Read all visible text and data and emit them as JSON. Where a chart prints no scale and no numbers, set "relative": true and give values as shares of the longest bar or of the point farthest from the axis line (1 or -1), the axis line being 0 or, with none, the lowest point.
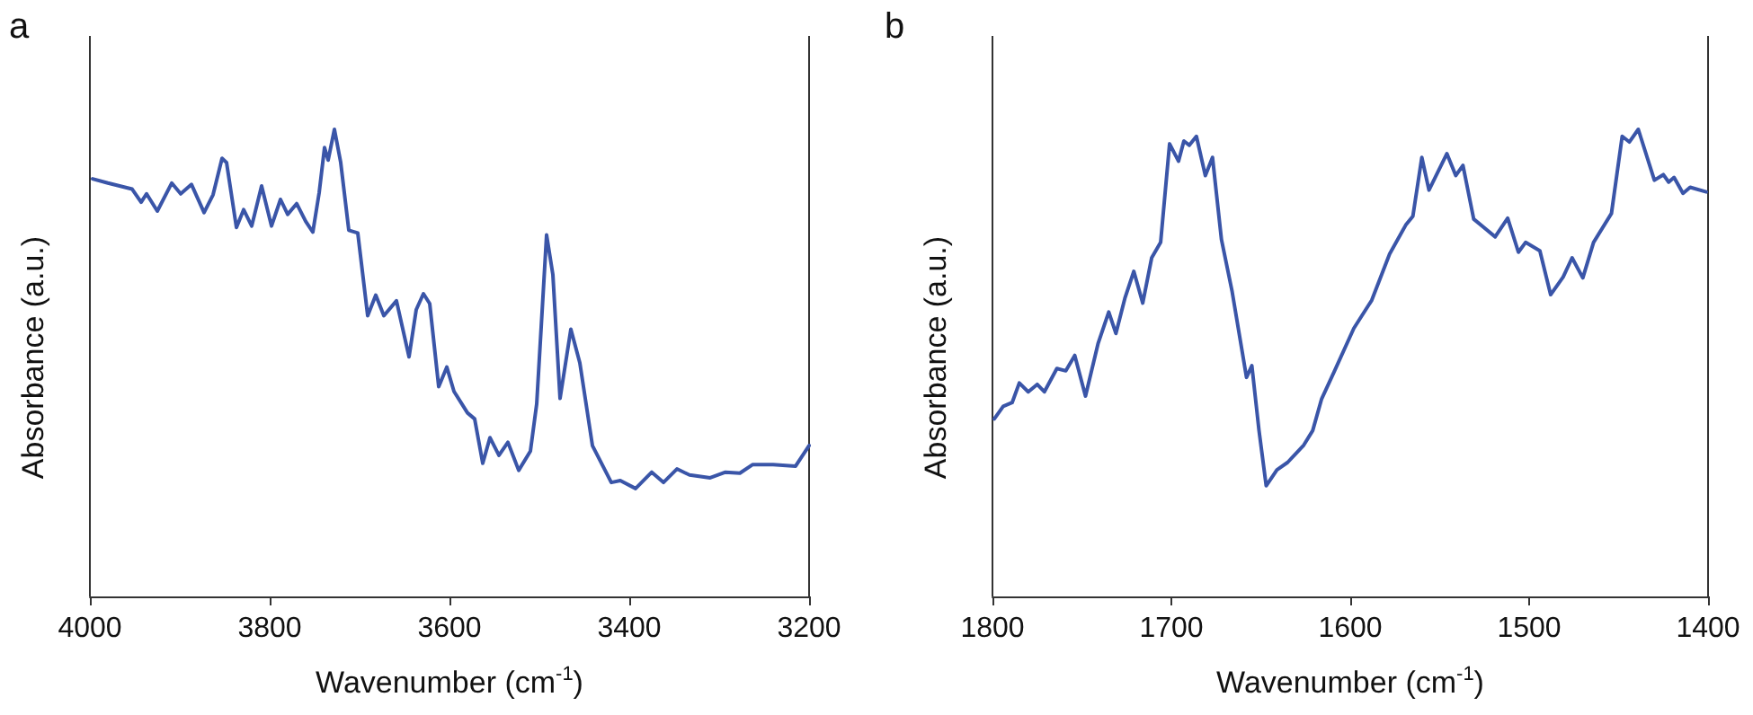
{
  "chart_data": [
    {
      "type": "line",
      "title": "a",
      "xlabel": "Wavenumber (cm$^{-1}$)",
      "ylabel": "Absorbance (a.u.)",
      "relative": true,
      "tick_labels": "x",
      "xlim": [
        4000,
        3200
      ],
      "xticks": [
        4000,
        3800,
        3600,
        3400,
        3200
      ],
      "x": [
        3997,
        3980,
        3953,
        3943,
        3937,
        3925,
        3909,
        3899,
        3887,
        3873,
        3863,
        3853,
        3848,
        3837,
        3829,
        3820,
        3809,
        3798,
        3788,
        3780,
        3770,
        3760,
        3752,
        3745,
        3739,
        3735,
        3728,
        3721,
        3712,
        3702,
        3691,
        3682,
        3673,
        3659,
        3645,
        3637,
        3629,
        3622,
        3612,
        3603,
        3595,
        3580,
        3572,
        3563,
        3555,
        3545,
        3535,
        3523,
        3510,
        3503,
        3492,
        3485,
        3477,
        3465,
        3455,
        3441,
        3420,
        3410,
        3393,
        3375,
        3362,
        3347,
        3333,
        3310,
        3293,
        3277,
        3263,
        3240,
        3215,
        3200
      ],
      "series": [
        {
          "color": "#3a55a8",
          "values": [
            0.894,
            0.885,
            0.872,
            0.844,
            0.862,
            0.825,
            0.885,
            0.862,
            0.882,
            0.822,
            0.86,
            0.938,
            0.929,
            0.79,
            0.828,
            0.793,
            0.879,
            0.793,
            0.85,
            0.818,
            0.841,
            0.803,
            0.78,
            0.864,
            0.961,
            0.934,
            1,
            0.929,
            0.784,
            0.778,
            0.601,
            0.645,
            0.601,
            0.633,
            0.513,
            0.614,
            0.648,
            0.627,
            0.449,
            0.491,
            0.439,
            0.393,
            0.38,
            0.285,
            0.34,
            0.302,
            0.33,
            0.27,
            0.311,
            0.412,
            0.774,
            0.689,
            0.424,
            0.572,
            0.5,
            0.323,
            0.244,
            0.248,
            0.231,
            0.266,
            0.244,
            0.273,
            0.26,
            0.254,
            0.266,
            0.264,
            0.282,
            0.282,
            0.279,
            0.323
          ]
        }
      ]
    },
    {
      "type": "line",
      "title": "b",
      "xlabel": "Wavenumber (cm$^{-1}$)",
      "ylabel": "Absorbance (a.u.)",
      "relative": true,
      "tick_labels": "x",
      "xlim": [
        1800,
        1400
      ],
      "xticks": [
        1800,
        1700,
        1600,
        1500,
        1400
      ],
      "x": [
        1799,
        1794,
        1789,
        1785,
        1780,
        1775,
        1771,
        1764,
        1759,
        1754,
        1748,
        1741,
        1735,
        1731,
        1726,
        1721,
        1716,
        1711,
        1706,
        1701,
        1696,
        1693,
        1690,
        1686,
        1681,
        1677,
        1672,
        1666,
        1658,
        1655,
        1651,
        1647,
        1641,
        1635,
        1626,
        1621,
        1616,
        1609,
        1598,
        1588,
        1578,
        1569,
        1565,
        1560,
        1556,
        1546,
        1541,
        1537,
        1531,
        1519,
        1512,
        1506,
        1502,
        1494,
        1488,
        1481,
        1476,
        1470,
        1464,
        1454,
        1448,
        1444,
        1439,
        1430,
        1425,
        1422,
        1419,
        1414,
        1410,
        1401
      ],
      "series": [
        {
          "color": "#3a55a8",
          "values": [
            0.38,
            0.407,
            0.415,
            0.457,
            0.438,
            0.454,
            0.438,
            0.488,
            0.483,
            0.516,
            0.429,
            0.541,
            0.609,
            0.563,
            0.638,
            0.696,
            0.628,
            0.725,
            0.758,
            0.969,
            0.932,
            0.975,
            0.966,
            0.985,
            0.901,
            0.94,
            0.764,
            0.652,
            0.469,
            0.494,
            0.355,
            0.237,
            0.271,
            0.287,
            0.324,
            0.355,
            0.423,
            0.481,
            0.574,
            0.634,
            0.733,
            0.795,
            0.814,
            0.94,
            0.87,
            0.948,
            0.901,
            0.923,
            0.808,
            0.77,
            0.81,
            0.737,
            0.758,
            0.74,
            0.646,
            0.684,
            0.725,
            0.682,
            0.758,
            0.82,
            0.985,
            0.973,
            1,
            0.891,
            0.903,
            0.887,
            0.897,
            0.863,
            0.876,
            0.866
          ]
        }
      ]
    }
  ]
}
